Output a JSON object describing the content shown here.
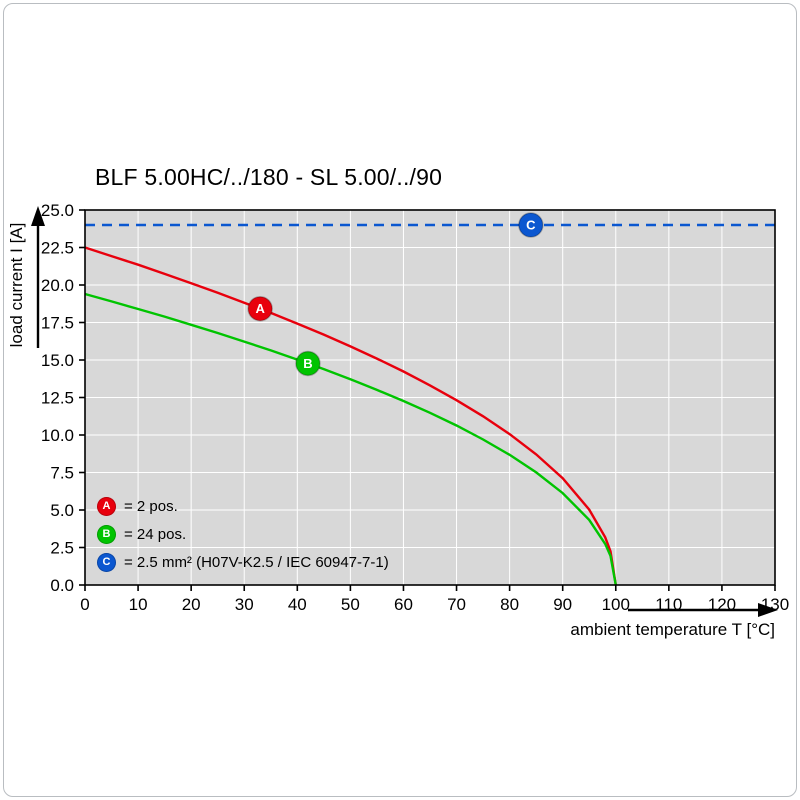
{
  "chart_data": {
    "type": "line",
    "title": "BLF 5.00HC/../180 - SL 5.00/../90",
    "xlabel": "ambient temperature T [°C]",
    "ylabel": "load current I [A]",
    "xlim": [
      0,
      130
    ],
    "ylim": [
      0,
      25
    ],
    "grid": true,
    "plot_bg": "#d8d8d8",
    "grid_color": "#ffffff",
    "xticks": [
      0,
      10,
      20,
      30,
      40,
      50,
      60,
      70,
      80,
      90,
      100,
      110,
      120,
      130
    ],
    "xtick_labels": [
      "0",
      "10",
      "20",
      "30",
      "40",
      "50",
      "60",
      "70",
      "80",
      "90",
      "100",
      "110",
      "120",
      "130"
    ],
    "yticks": [
      0,
      2.5,
      5,
      7.5,
      10,
      12.5,
      15,
      17.5,
      20,
      22.5,
      25
    ],
    "ytick_labels": [
      "0.0",
      "2.5",
      "5.0",
      "7.5",
      "10.0",
      "12.5",
      "15.0",
      "17.5",
      "20.0",
      "22.5",
      "25.0"
    ],
    "legend_position": "bottom-left-inside",
    "series": [
      {
        "name": "A",
        "legend_label": "= 2 pos.",
        "color": "#e8000d",
        "line_style": "solid",
        "marker": {
          "x": 33,
          "y": 18.42
        },
        "points": [
          [
            0,
            22.5
          ],
          [
            5,
            21.93
          ],
          [
            10,
            21.35
          ],
          [
            15,
            20.74
          ],
          [
            20,
            20.12
          ],
          [
            25,
            19.49
          ],
          [
            30,
            18.82
          ],
          [
            35,
            18.14
          ],
          [
            40,
            17.43
          ],
          [
            45,
            16.69
          ],
          [
            50,
            15.91
          ],
          [
            55,
            15.09
          ],
          [
            60,
            14.23
          ],
          [
            65,
            13.31
          ],
          [
            70,
            12.32
          ],
          [
            75,
            11.25
          ],
          [
            80,
            10.06
          ],
          [
            85,
            8.71
          ],
          [
            90,
            7.12
          ],
          [
            95,
            5.03
          ],
          [
            98,
            3.18
          ],
          [
            99,
            2.25
          ],
          [
            100,
            0
          ]
        ]
      },
      {
        "name": "B",
        "legend_label": "= 24 pos.",
        "color": "#00c400",
        "line_style": "solid",
        "marker": {
          "x": 42,
          "y": 14.77
        },
        "points": [
          [
            0,
            19.4
          ],
          [
            5,
            18.91
          ],
          [
            10,
            18.4
          ],
          [
            15,
            17.89
          ],
          [
            20,
            17.35
          ],
          [
            25,
            16.8
          ],
          [
            30,
            16.23
          ],
          [
            35,
            15.64
          ],
          [
            40,
            15.03
          ],
          [
            45,
            14.39
          ],
          [
            50,
            13.72
          ],
          [
            55,
            13.01
          ],
          [
            60,
            12.27
          ],
          [
            65,
            11.48
          ],
          [
            70,
            10.63
          ],
          [
            75,
            9.7
          ],
          [
            80,
            8.68
          ],
          [
            85,
            7.51
          ],
          [
            90,
            6.13
          ],
          [
            95,
            4.34
          ],
          [
            98,
            2.74
          ],
          [
            99,
            1.94
          ],
          [
            100,
            0
          ]
        ]
      },
      {
        "name": "C",
        "legend_label": "= 2.5 mm² (H07V-K2.5 / IEC 60947-7-1)",
        "color": "#0b57d0",
        "line_style": "dashed",
        "marker": {
          "x": 84,
          "y": 24
        },
        "points": [
          [
            0,
            24
          ],
          [
            130,
            24
          ]
        ]
      }
    ]
  }
}
